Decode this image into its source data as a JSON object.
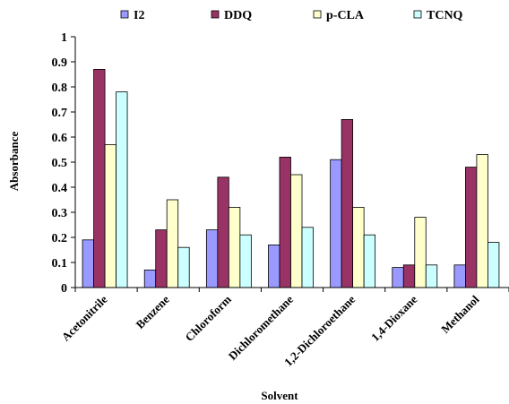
{
  "chart_data": {
    "type": "bar",
    "title": "",
    "xlabel": "Solvent",
    "ylabel": "Absorbance",
    "ylim": [
      0,
      1
    ],
    "yticks": [
      "0",
      "0.1",
      "0.2",
      "0.3",
      "0.4",
      "0.5",
      "0.6",
      "0.7",
      "0.8",
      "0.9",
      "1"
    ],
    "categories": [
      "Acetonitrile",
      "Benzene",
      "Chloroform",
      "Dichloromethane",
      "1,2-Dichloroethane",
      "1,4-Dioxane",
      "Methanol"
    ],
    "series": [
      {
        "name": "I2",
        "color": "#9999ff",
        "values": [
          0.19,
          0.07,
          0.23,
          0.17,
          0.51,
          0.08,
          0.09
        ]
      },
      {
        "name": "DDQ",
        "color": "#993366",
        "values": [
          0.87,
          0.23,
          0.44,
          0.52,
          0.67,
          0.09,
          0.48
        ]
      },
      {
        "name": "p-CLA",
        "color": "#ffffcc",
        "values": [
          0.57,
          0.35,
          0.32,
          0.45,
          0.32,
          0.28,
          0.53
        ]
      },
      {
        "name": "TCNQ",
        "color": "#ccffff",
        "values": [
          0.78,
          0.16,
          0.21,
          0.24,
          0.21,
          0.09,
          0.18
        ]
      }
    ],
    "legend_position": "top",
    "grid": false
  }
}
